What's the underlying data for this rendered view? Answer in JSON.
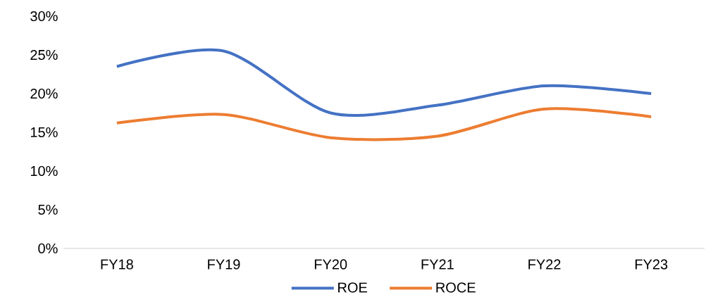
{
  "chart_data": {
    "type": "line",
    "categories": [
      "FY18",
      "FY19",
      "FY20",
      "FY21",
      "FY22",
      "FY23"
    ],
    "series": [
      {
        "name": "ROE",
        "color": "#4472c4",
        "values": [
          23.5,
          25.5,
          17.5,
          18.5,
          21,
          20
        ]
      },
      {
        "name": "ROCE",
        "color": "#ed7d31",
        "values": [
          16.2,
          17.3,
          14.3,
          14.5,
          18,
          17
        ]
      }
    ],
    "ylim": [
      0,
      30
    ],
    "yticks": [
      {
        "value": 0,
        "label": "0%"
      },
      {
        "value": 5,
        "label": "5%"
      },
      {
        "value": 10,
        "label": "10%"
      },
      {
        "value": 15,
        "label": "15%"
      },
      {
        "value": 20,
        "label": "20%"
      },
      {
        "value": 25,
        "label": "25%"
      },
      {
        "value": 30,
        "label": "30%"
      }
    ],
    "legend": "bottom",
    "marker": "none",
    "line_style": "solid",
    "grid": false
  }
}
